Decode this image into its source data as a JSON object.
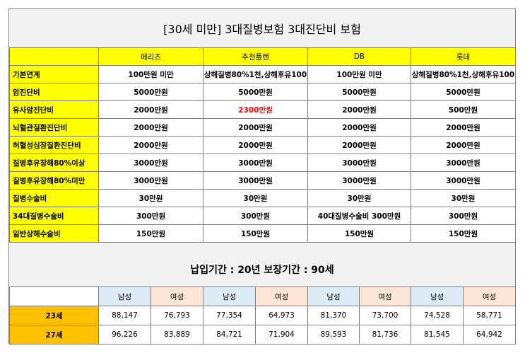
{
  "title": "[30세 미만] 3대질병보험 3대진단비 보험",
  "companies": [
    "메리츠",
    "추천플랜",
    "DB",
    "롯데"
  ],
  "rows": [
    {
      "label": "기본연계",
      "values": [
        "100만원 미만",
        "상해질병80%1천,상해후유100",
        "100만원 미만",
        "상해질병80%1천,상해후유100"
      ]
    },
    {
      "label": "암진단비",
      "values": [
        "5000만원",
        "5000만원",
        "5000만원",
        "5000만원"
      ]
    },
    {
      "label": "유사암진단비",
      "values": [
        "2000만원",
        "2300만원",
        "2000만원",
        "500만원"
      ]
    },
    {
      "label": "뇌혈관질환진단비",
      "values": [
        "2000만원",
        "2000만원",
        "2000만원",
        "2000만원"
      ]
    },
    {
      "label": "허혈성심장질환진단비",
      "values": [
        "2000만원",
        "2000만원",
        "2000만원",
        "2000만원"
      ]
    },
    {
      "label": "질병후유장해80%이상",
      "values": [
        "3000만원",
        "3000만원",
        "3000만원",
        "3000만원"
      ]
    },
    {
      "label": "질병후유장해80%미만",
      "values": [
        "3000만원",
        "3000만원",
        "3000만원",
        "3000만원"
      ]
    },
    {
      "label": "질병수술비",
      "values": [
        "30만원",
        "30만원",
        "30만원",
        "30만원"
      ]
    },
    {
      "label": "34대질병수술비",
      "values": [
        "300만원",
        "300만원",
        "40대질병수술비 300만원",
        "300만원"
      ]
    },
    {
      "label": "일반상해수술비",
      "values": [
        "150만원",
        "150만원",
        "150만원",
        "150만원"
      ]
    }
  ],
  "highlight_color": "#ff0000",
  "period_text": "납입기간 : 20년 보장기간 : 90세",
  "genders": [
    "남성",
    "여성",
    "남성",
    "여성",
    "남성",
    "여성",
    "남성",
    "여성"
  ],
  "premiums": [
    {
      "age": "23세",
      "values": [
        "88,147",
        "76,793",
        "77,354",
        "64,973",
        "81,370",
        "73,700",
        "74,528",
        "58,771"
      ]
    },
    {
      "age": "27세",
      "values": [
        "96,226",
        "83,889",
        "84,721",
        "71,904",
        "89,593",
        "81,736",
        "81,545",
        "64,942"
      ]
    }
  ]
}
